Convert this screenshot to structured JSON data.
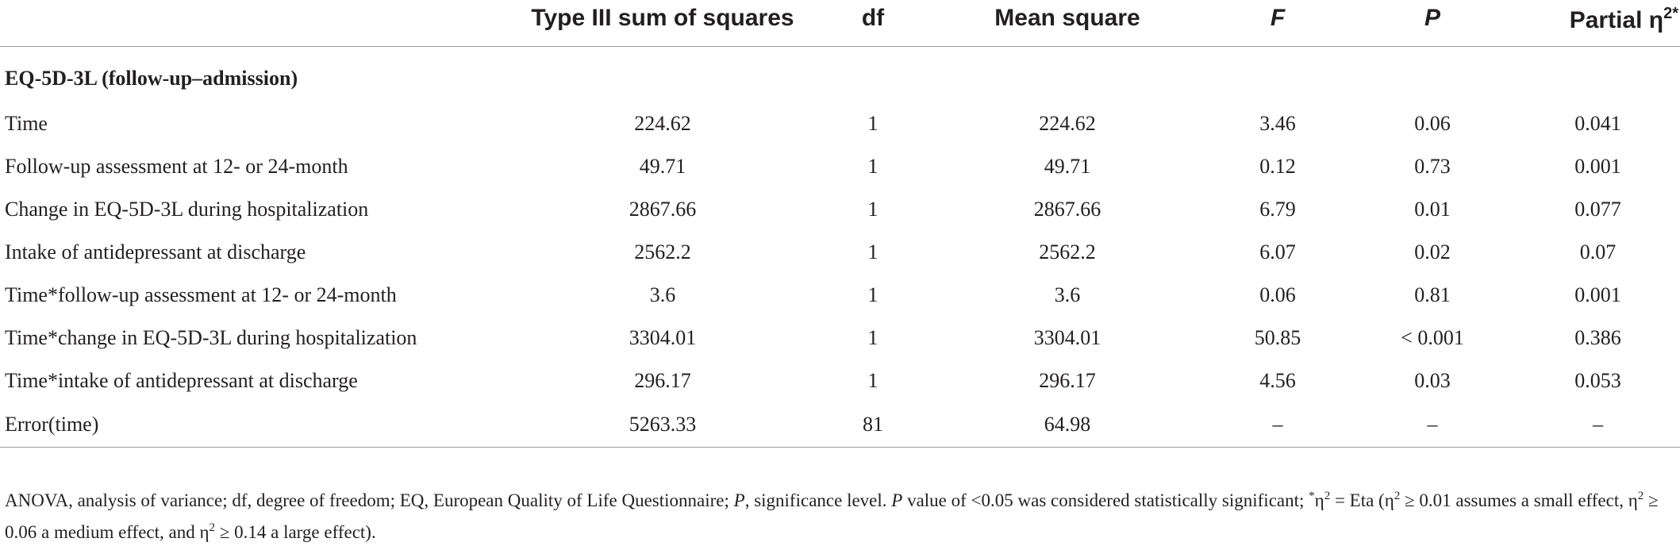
{
  "headers": {
    "col_label": "",
    "col_ss": "Type III sum of squares",
    "col_df": "df",
    "col_ms": "Mean square",
    "col_f": "F",
    "col_p": "P",
    "col_eta": "Partial η",
    "col_eta_sup": "2*"
  },
  "section_title": "EQ-5D-3L (follow-up–admission)",
  "rows": [
    {
      "label": "Time",
      "ss": "224.62",
      "df": "1",
      "ms": "224.62",
      "f": "3.46",
      "p": "0.06",
      "eta": "0.041"
    },
    {
      "label": "Follow-up assessment at 12- or 24-month",
      "ss": "49.71",
      "df": "1",
      "ms": "49.71",
      "f": "0.12",
      "p": "0.73",
      "eta": "0.001"
    },
    {
      "label": "Change in EQ-5D-3L during hospitalization",
      "ss": "2867.66",
      "df": "1",
      "ms": "2867.66",
      "f": "6.79",
      "p": "0.01",
      "eta": "0.077"
    },
    {
      "label": "Intake of antidepressant at discharge",
      "ss": "2562.2",
      "df": "1",
      "ms": "2562.2",
      "f": "6.07",
      "p": "0.02",
      "eta": "0.07"
    },
    {
      "label": "Time*follow-up assessment at 12- or 24-month",
      "ss": "3.6",
      "df": "1",
      "ms": "3.6",
      "f": "0.06",
      "p": "0.81",
      "eta": "0.001"
    },
    {
      "label": "Time*change in EQ-5D-3L during hospitalization",
      "ss": "3304.01",
      "df": "1",
      "ms": "3304.01",
      "f": "50.85",
      "p": "< 0.001",
      "eta": "0.386"
    },
    {
      "label": "Time*intake of antidepressant at discharge",
      "ss": "296.17",
      "df": "1",
      "ms": "296.17",
      "f": "4.56",
      "p": "0.03",
      "eta": "0.053"
    },
    {
      "label": "Error(time)",
      "ss": "5263.33",
      "df": "81",
      "ms": "64.98",
      "f": "–",
      "p": "–",
      "eta": "–"
    }
  ],
  "footnote": {
    "part1": "ANOVA, analysis of variance; df, degree of freedom; EQ, European Quality of Life Questionnaire; ",
    "p_italic_1": "P",
    "part2": ", significance level. ",
    "p_italic_2": "P",
    "part3": " value of <0.05 was considered statistically significant; ",
    "star": "*",
    "eta1": "η",
    "sup1": "2",
    "part4": " = Eta (η",
    "sup2": "2",
    "part5": " ≥ 0.01 assumes a small effect, η",
    "sup3": "2",
    "part6": " ≥ 0.06 a medium effect, and η",
    "sup4": "2",
    "part7": " ≥ 0.14 a large effect)."
  }
}
